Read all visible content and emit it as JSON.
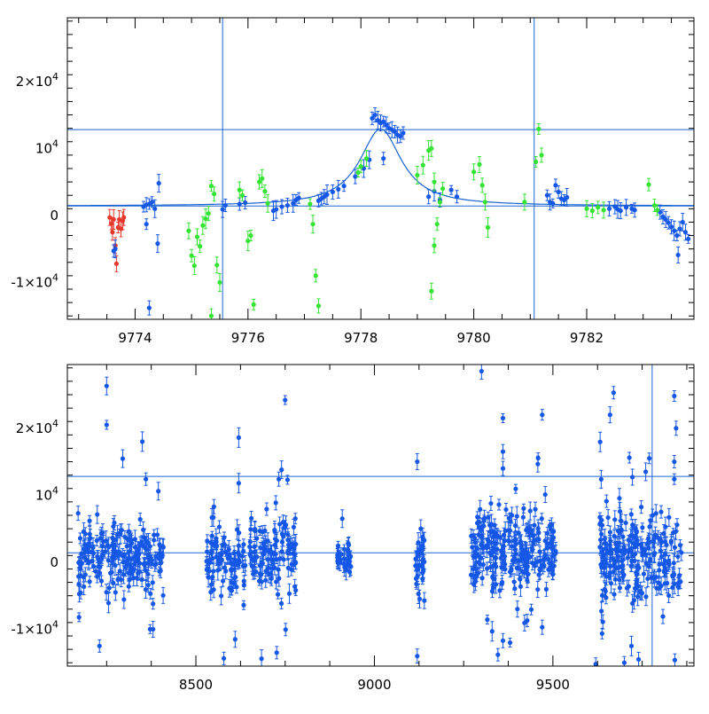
{
  "chart_data": [
    {
      "type": "scatter",
      "title": "",
      "xlabel": "",
      "ylabel": "",
      "xlim": [
        9772.8,
        9783.9
      ],
      "ylim": [
        -15500,
        29500
      ],
      "x_ticks": [
        9774,
        9776,
        9778,
        9780,
        9782
      ],
      "x_tick_labels": [
        "9774",
        "9776",
        "9778",
        "9780",
        "9782"
      ],
      "y_ticks": [
        -10000,
        0,
        10000,
        20000
      ],
      "y_tick_labels": [
        {
          "mant": "-1×10",
          "exp": "4"
        },
        {
          "mant": "0",
          "exp": ""
        },
        {
          "mant": "10",
          "exp": "4"
        },
        {
          "mant": "2×10",
          "exp": "4"
        }
      ],
      "hlines": [
        12800,
        1400
      ],
      "vlines": [
        9775.55,
        9781.07
      ],
      "colors": {
        "red": "#e8372c",
        "green": "#33e433",
        "blue": "#1557e6",
        "line": "#1a63d1"
      },
      "model_curve": {
        "type": "lorentzian",
        "baseline": 1400,
        "peak_x": 9778.35,
        "amplitude": 11500,
        "half_width": 0.45
      },
      "series": [
        {
          "color": "red",
          "points": [
            [
              9773.55,
              -300
            ],
            [
              9773.58,
              -1200
            ],
            [
              9773.6,
              -2500
            ],
            [
              9773.62,
              -600
            ],
            [
              9773.65,
              -4500
            ],
            [
              9773.67,
              -7200
            ],
            [
              9773.7,
              -1800
            ],
            [
              9773.72,
              -600
            ],
            [
              9773.75,
              -2000
            ],
            [
              9773.78,
              -800
            ],
            [
              9773.8,
              -300
            ]
          ]
        },
        {
          "color": "blue",
          "points": [
            [
              9773.62,
              -5300
            ],
            [
              9773.65,
              -5000
            ],
            [
              9774.15,
              1300
            ],
            [
              9774.2,
              1600
            ],
            [
              9774.25,
              1700
            ],
            [
              9774.3,
              2000
            ],
            [
              9774.35,
              1000
            ],
            [
              9774.42,
              4800
            ],
            [
              9774.4,
              -4200
            ],
            [
              9774.2,
              -1300
            ],
            [
              9774.25,
              -13800
            ],
            [
              9775.55,
              900
            ],
            [
              9775.6,
              1500
            ],
            [
              9775.85,
              1700
            ],
            [
              9775.95,
              1900
            ],
            [
              9776.45,
              700
            ],
            [
              9776.5,
              900
            ],
            [
              9776.6,
              1300
            ],
            [
              9776.7,
              1500
            ],
            [
              9776.8,
              1800
            ],
            [
              9776.85,
              2300
            ],
            [
              9776.9,
              2600
            ],
            [
              9777.25,
              2200
            ],
            [
              9777.3,
              2500
            ],
            [
              9777.35,
              2800
            ],
            [
              9777.4,
              3100
            ],
            [
              9777.5,
              3500
            ],
            [
              9777.6,
              3900
            ],
            [
              9777.7,
              4400
            ],
            [
              9777.9,
              5800
            ],
            [
              9778.05,
              7000
            ],
            [
              9778.15,
              8300
            ],
            [
              9778.2,
              14500
            ],
            [
              9778.25,
              15000
            ],
            [
              9778.3,
              14200
            ],
            [
              9778.35,
              13800
            ],
            [
              9778.4,
              14000
            ],
            [
              9778.45,
              13500
            ],
            [
              9778.5,
              13000
            ],
            [
              9778.55,
              12800
            ],
            [
              9778.6,
              12500
            ],
            [
              9778.65,
              12000
            ],
            [
              9778.7,
              11800
            ],
            [
              9778.75,
              12300
            ],
            [
              9778.4,
              8500
            ],
            [
              9779.2,
              2800
            ],
            [
              9779.3,
              3600
            ],
            [
              9779.4,
              2300
            ],
            [
              9779.6,
              3800
            ],
            [
              9779.7,
              2800
            ],
            [
              9781.3,
              3000
            ],
            [
              9781.35,
              2000
            ],
            [
              9781.4,
              1800
            ],
            [
              9781.45,
              4500
            ],
            [
              9781.5,
              3500
            ],
            [
              9781.55,
              2500
            ],
            [
              9781.6,
              2300
            ],
            [
              9781.65,
              2700
            ],
            [
              9782.4,
              1000
            ],
            [
              9782.5,
              1300
            ],
            [
              9782.55,
              900
            ],
            [
              9782.6,
              700
            ],
            [
              9782.7,
              1200
            ],
            [
              9782.8,
              1000
            ],
            [
              9782.85,
              800
            ],
            [
              9783.3,
              500
            ],
            [
              9783.35,
              -200
            ],
            [
              9783.4,
              -600
            ],
            [
              9783.45,
              -1100
            ],
            [
              9783.5,
              -1700
            ],
            [
              9783.55,
              -2300
            ],
            [
              9783.6,
              -3000
            ],
            [
              9783.65,
              -2000
            ],
            [
              9783.7,
              -1000
            ],
            [
              9783.75,
              -2500
            ],
            [
              9783.8,
              -3500
            ],
            [
              9783.62,
              -5900
            ]
          ]
        },
        {
          "color": "green",
          "points": [
            [
              9774.95,
              -2300
            ],
            [
              9775.0,
              -6000
            ],
            [
              9775.05,
              -7500
            ],
            [
              9775.1,
              -3200
            ],
            [
              9775.15,
              -4600
            ],
            [
              9775.2,
              -1500
            ],
            [
              9775.25,
              -500
            ],
            [
              9775.3,
              300
            ],
            [
              9775.35,
              4400
            ],
            [
              9775.4,
              3200
            ],
            [
              9775.45,
              -7400
            ],
            [
              9775.5,
              -10000
            ],
            [
              9775.35,
              -15000
            ],
            [
              9775.85,
              3800
            ],
            [
              9775.9,
              3000
            ],
            [
              9776.0,
              -3800
            ],
            [
              9776.05,
              -3000
            ],
            [
              9776.1,
              -13300
            ],
            [
              9776.2,
              5000
            ],
            [
              9776.25,
              5500
            ],
            [
              9776.3,
              3600
            ],
            [
              9776.35,
              1800
            ],
            [
              9777.1,
              1700
            ],
            [
              9777.15,
              -1300
            ],
            [
              9777.2,
              -9000
            ],
            [
              9777.25,
              -13500
            ],
            [
              9777.95,
              6400
            ],
            [
              9778.0,
              7300
            ],
            [
              9778.1,
              8500
            ],
            [
              9779.0,
              6000
            ],
            [
              9779.1,
              7500
            ],
            [
              9779.2,
              9700
            ],
            [
              9779.25,
              10000
            ],
            [
              9779.3,
              5000
            ],
            [
              9779.35,
              -1300
            ],
            [
              9779.4,
              2000
            ],
            [
              9779.45,
              4000
            ],
            [
              9779.3,
              -4500
            ],
            [
              9779.25,
              -11300
            ],
            [
              9780.0,
              6500
            ],
            [
              9780.1,
              7600
            ],
            [
              9780.15,
              4500
            ],
            [
              9780.2,
              2000
            ],
            [
              9780.25,
              -1800
            ],
            [
              9780.9,
              2000
            ],
            [
              9781.1,
              8000
            ],
            [
              9781.2,
              9000
            ],
            [
              9781.15,
              12900
            ],
            [
              9782.0,
              1000
            ],
            [
              9782.1,
              700
            ],
            [
              9782.2,
              1200
            ],
            [
              9782.3,
              800
            ],
            [
              9783.1,
              4600
            ],
            [
              9783.2,
              1500
            ],
            [
              9783.25,
              800
            ]
          ]
        }
      ]
    },
    {
      "type": "scatter",
      "title": "",
      "xlabel": "",
      "ylabel": "",
      "xlim": [
        8140,
        9895
      ],
      "ylim": [
        -15500,
        29500
      ],
      "x_ticks": [
        8500,
        9000,
        9500
      ],
      "x_tick_labels": [
        "8500",
        "9000",
        "9500"
      ],
      "y_ticks": [
        -10000,
        0,
        10000,
        20000
      ],
      "y_tick_labels": [
        {
          "mant": "-1×10",
          "exp": "4"
        },
        {
          "mant": "0",
          "exp": ""
        },
        {
          "mant": "10",
          "exp": "4"
        },
        {
          "mant": "2×10",
          "exp": "4"
        }
      ],
      "hlines": [
        12800,
        1400
      ],
      "vlines": [
        9778
      ],
      "colors": {
        "blue": "#1557e6",
        "line": "#1a63d1"
      },
      "segments": [
        {
          "x0": 8170,
          "x1": 8410,
          "n": 200,
          "center": 500,
          "spread": 2500
        },
        {
          "x0": 8530,
          "x1": 8640,
          "n": 90,
          "center": 0,
          "spread": 2500
        },
        {
          "x0": 8650,
          "x1": 8780,
          "n": 110,
          "center": 800,
          "spread": 3000
        },
        {
          "x0": 8895,
          "x1": 8935,
          "n": 30,
          "center": 500,
          "spread": 1000
        },
        {
          "x0": 9115,
          "x1": 9140,
          "n": 30,
          "center": -500,
          "spread": 2500
        },
        {
          "x0": 9270,
          "x1": 9510,
          "n": 240,
          "center": 1500,
          "spread": 3000
        },
        {
          "x0": 9630,
          "x1": 9860,
          "n": 220,
          "center": 1000,
          "spread": 3500
        }
      ],
      "outliers": [
        [
          8250,
          26300
        ],
        [
          8250,
          20500
        ],
        [
          8350,
          18000
        ],
        [
          8360,
          12400
        ],
        [
          8380,
          -10000
        ],
        [
          8230,
          -12500
        ],
        [
          8380,
          -6200
        ],
        [
          8620,
          18600
        ],
        [
          8610,
          -11500
        ],
        [
          8750,
          24200
        ],
        [
          8740,
          13800
        ],
        [
          8620,
          11800
        ],
        [
          8910,
          6500
        ],
        [
          9120,
          15000
        ],
        [
          9120,
          -14000
        ],
        [
          9130,
          5000
        ],
        [
          9300,
          28500
        ],
        [
          9360,
          21500
        ],
        [
          9360,
          16500
        ],
        [
          9360,
          14000
        ],
        [
          9470,
          22000
        ],
        [
          9360,
          -11700
        ],
        [
          9380,
          -12000
        ],
        [
          9470,
          -9700
        ],
        [
          9660,
          22000
        ],
        [
          9670,
          25300
        ],
        [
          9760,
          13500
        ],
        [
          9770,
          15500
        ],
        [
          9840,
          24800
        ],
        [
          9845,
          20000
        ],
        [
          9840,
          12400
        ],
        [
          9840,
          15000
        ],
        [
          9620,
          -15200
        ],
        [
          9700,
          -15000
        ],
        [
          9740,
          -14500
        ],
        [
          9720,
          -12500
        ]
      ]
    }
  ]
}
